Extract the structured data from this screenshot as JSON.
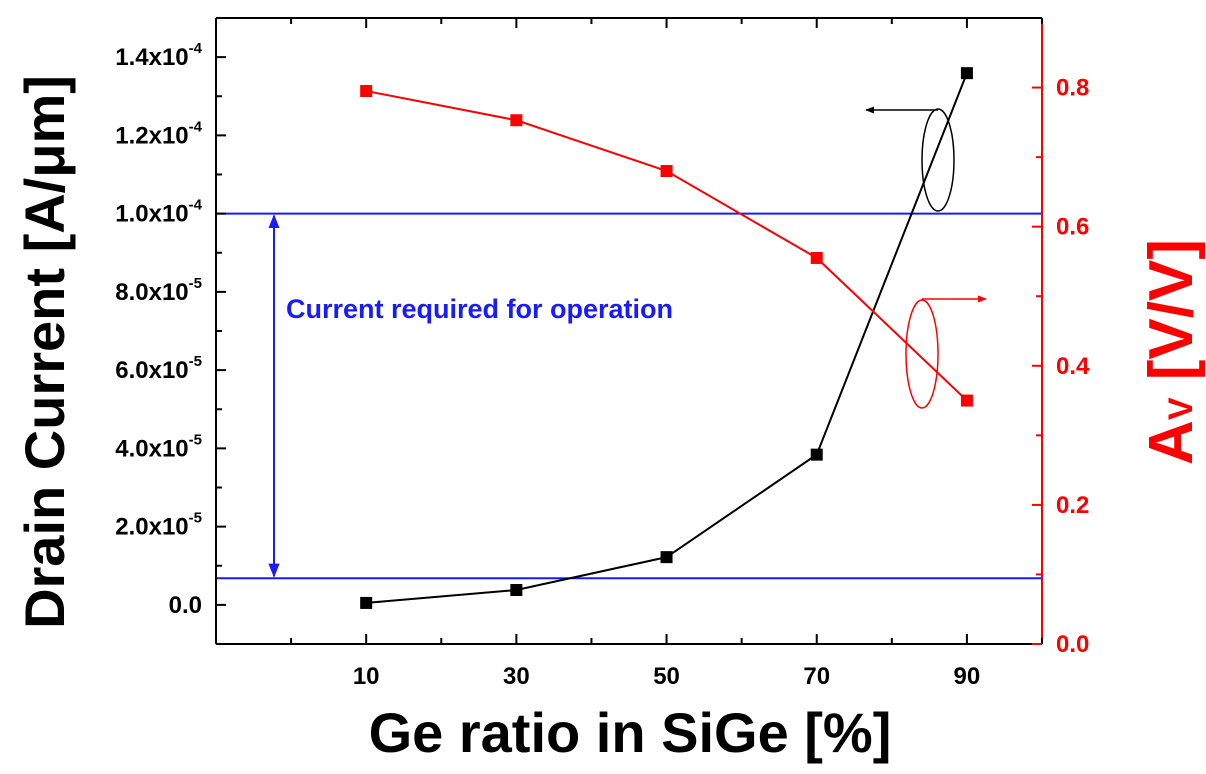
{
  "chart_data": {
    "type": "line",
    "x": [
      10,
      30,
      50,
      70,
      90
    ],
    "xlim": [
      -10,
      100
    ],
    "xticks": [
      "10",
      "30",
      "50",
      "70",
      "90"
    ],
    "xlabel": "Ge ratio in SiGe [%]",
    "y_left": {
      "label": "Drain Current [A/μm]",
      "lim": [
        -1e-05,
        0.00015
      ],
      "ticks": [
        {
          "value": 0,
          "label": "0.0"
        },
        {
          "value": 2e-05,
          "label": "2.0x10",
          "exp": "-5"
        },
        {
          "value": 4e-05,
          "label": "4.0x10",
          "exp": "-5"
        },
        {
          "value": 6e-05,
          "label": "6.0x10",
          "exp": "-5"
        },
        {
          "value": 8e-05,
          "label": "8.0x10",
          "exp": "-5"
        },
        {
          "value": 0.0001,
          "label": "1.0x10",
          "exp": "-4"
        },
        {
          "value": 0.00012,
          "label": "1.2x10",
          "exp": "-4"
        },
        {
          "value": 0.00014,
          "label": "1.4x10",
          "exp": "-4"
        }
      ],
      "color": "#000000"
    },
    "y_right": {
      "label_main": "A",
      "label_sub": "V",
      "label_rest": " [V/V]",
      "lim": [
        0,
        0.9
      ],
      "ticks": [
        {
          "value": 0,
          "label": "0.0"
        },
        {
          "value": 0.2,
          "label": "0.2"
        },
        {
          "value": 0.4,
          "label": "0.4"
        },
        {
          "value": 0.6,
          "label": "0.6"
        },
        {
          "value": 0.8,
          "label": "0.8"
        }
      ],
      "color": "#ff0000"
    },
    "series": [
      {
        "axis": "left",
        "color": "#000000",
        "values": [
          5e-07,
          3.8e-06,
          1.22e-05,
          3.84e-05,
          0.0001359
        ]
      },
      {
        "axis": "right",
        "color": "#ff0000",
        "values": [
          0.795,
          0.753,
          0.68,
          0.555,
          0.35
        ]
      }
    ],
    "reference_lines": [
      {
        "axis": "left",
        "value": 0.0001,
        "color": "#1a1aff"
      },
      {
        "axis": "left",
        "value": 6.8e-06,
        "color": "#1a1aff"
      }
    ],
    "annotation": {
      "text": "Current required for operation",
      "color": "#1a1aff"
    }
  }
}
